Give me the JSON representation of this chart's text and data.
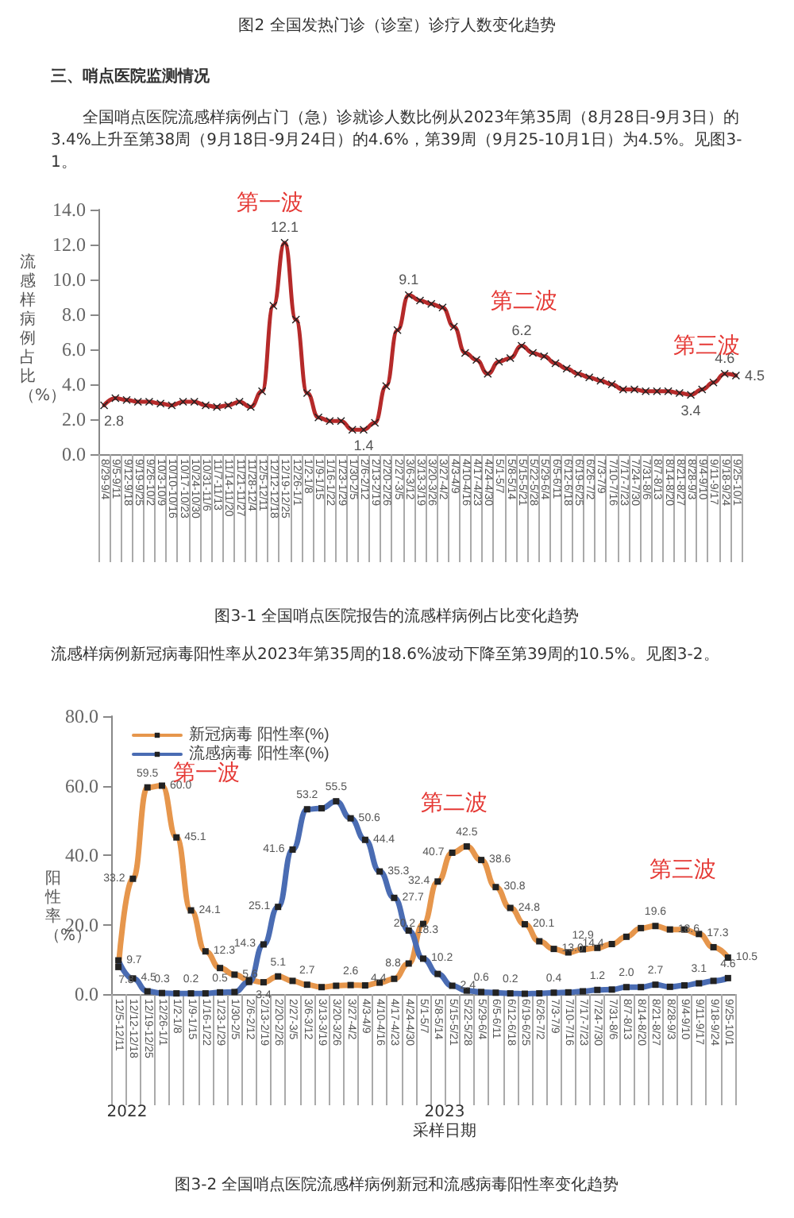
{
  "chart_data": [
    {
      "type": "line",
      "title": "图3-1 全国哨点医院报告的流感样病例占比变化趋势",
      "ylabel": "流感样病例占比（%）",
      "annotations": [
        "图2 全国发热门诊（诊室）诊疗人数变化趋势",
        "三、哨点医院监测情况",
        "全国哨点医院流感样病例占门（急）诊就诊人数比例从2023年第35周（8月28日-9月3日）的3.4%上升至第38周（9月18日-9月24日）的4.6%，第39周（9月25-10月1日）为4.5%。见图3-1。",
        "第一波",
        "第二波",
        "第三波"
      ],
      "categories": [
        "8/29-9/4",
        "9/5-9/11",
        "9/12-9/18",
        "9/19-9/25",
        "9/26-10/2",
        "10/3-10/9",
        "10/10-10/16",
        "10/17-10/23",
        "10/24-10/30",
        "10/31-11/6",
        "11/7-11/13",
        "11/14-11/20",
        "11/21-11/27",
        "11/28-12/4",
        "12/5-12/11",
        "12/12-12/18",
        "12/19-12/25",
        "12/26-1/1",
        "1/2-1/8",
        "1/9-1/15",
        "1/16-1/22",
        "1/23-1/29",
        "1/30-2/5",
        "2/6-2/12",
        "2/13-2/19",
        "2/20-2/26",
        "2/27-3/5",
        "3/6-3/12",
        "3/13-3/19",
        "3/20-3/26",
        "3/27-4/2",
        "4/3-4/9",
        "4/10-4/16",
        "4/17-4/23",
        "4/24-4/30",
        "5/1-5/7",
        "5/8-5/14",
        "5/15-5/21",
        "5/22-5/28",
        "5/29-6/4",
        "6/5-6/11",
        "6/12-6/18",
        "6/19-6/25",
        "6/26-7/2",
        "7/3-7/9",
        "7/10-7/16",
        "7/17-7/23",
        "7/24-7/30",
        "7/31-8/6",
        "8/7-8/13",
        "8/14-8/20",
        "8/21-8/27",
        "8/28-9/3",
        "9/4-9/10",
        "9/11-9/17",
        "9/18-9/24",
        "9/25-10/1"
      ],
      "values": [
        2.8,
        3.2,
        3.1,
        3.0,
        3.0,
        2.9,
        2.8,
        3.0,
        3.0,
        2.8,
        2.7,
        2.8,
        3.0,
        2.7,
        3.6,
        8.5,
        12.1,
        7.7,
        3.5,
        2.1,
        1.9,
        1.9,
        1.4,
        1.4,
        1.8,
        3.9,
        7.1,
        9.1,
        8.8,
        8.6,
        8.4,
        7.3,
        5.8,
        5.4,
        4.6,
        5.3,
        5.5,
        6.2,
        5.8,
        5.6,
        5.2,
        4.9,
        4.6,
        4.4,
        4.2,
        4.0,
        3.7,
        3.7,
        3.6,
        3.6,
        3.6,
        3.5,
        3.4,
        3.7,
        4.1,
        4.6,
        4.5
      ],
      "value_labels": [
        "2.8",
        null,
        null,
        null,
        null,
        null,
        null,
        null,
        null,
        null,
        null,
        null,
        null,
        null,
        null,
        null,
        "12.1",
        null,
        null,
        null,
        null,
        null,
        null,
        "1.4",
        null,
        null,
        null,
        "9.1",
        null,
        null,
        null,
        null,
        null,
        null,
        null,
        null,
        null,
        "6.2",
        null,
        null,
        null,
        null,
        null,
        null,
        null,
        null,
        null,
        null,
        null,
        null,
        null,
        null,
        "3.4",
        null,
        null,
        "4.6",
        "4.5"
      ],
      "color": "#b52a2a",
      "marker": "cross",
      "line_style": "solid",
      "ylim": [
        0,
        14
      ],
      "yticks": [
        {
          "value": 0,
          "label": "0.0"
        },
        {
          "value": 2,
          "label": "2.0"
        },
        {
          "value": 4,
          "label": "4.0"
        },
        {
          "value": 6,
          "label": "6.0"
        },
        {
          "value": 8,
          "label": "8.0"
        },
        {
          "value": 10,
          "label": "10.0"
        },
        {
          "value": 12,
          "label": "12.0"
        },
        {
          "value": 14,
          "label": "14.0"
        }
      ]
    },
    {
      "type": "line",
      "title": "图3-2 全国哨点医院流感样病例新冠和流感病毒阳性率变化趋势",
      "xlabel": "采样日期",
      "ylabel": "阳性率（%）",
      "annotations": [
        "流感样病例新冠病毒阳性率从2023年第35周的18.6%波动下降至第39周的10.5%。见图3-2。",
        "第一波",
        "第二波",
        "第三波",
        "2022",
        "2023"
      ],
      "categories": [
        "12/5-12/11",
        "12/12-12/18",
        "12/19-12/25",
        "12/26-1/1",
        "1/2-1/8",
        "1/9-1/15",
        "1/16-1/22",
        "1/23-1/29",
        "1/30-2/5",
        "2/6-2/12",
        "2/13-2/19",
        "2/20-2/26",
        "2/27-3/5",
        "3/6-3/12",
        "3/13-3/19",
        "3/20-3/26",
        "3/27-4/2",
        "4/3-4/9",
        "4/10-4/16",
        "4/17-4/23",
        "4/24-4/30",
        "5/1-5/7",
        "5/8-5/14",
        "5/15-5/21",
        "5/22-5/28",
        "5/29-6/4",
        "6/5-6/11",
        "6/12-6/18",
        "6/19-6/25",
        "6/26-7/2",
        "7/3-7/9",
        "7/10-7/16",
        "7/17-7/23",
        "7/24-7/30",
        "7/31-8/6",
        "8/7-8/13",
        "8/14-8/20",
        "8/21-8/27",
        "8/28-9/3",
        "9/4-9/10",
        "9/11-9/17",
        "9/18-9/24",
        "9/25-10/1"
      ],
      "series": [
        {
          "name": "新冠病毒 阳性率(%)",
          "color": "#e6964c",
          "values": [
            7.8,
            33.2,
            59.5,
            60.0,
            45.1,
            24.1,
            12.3,
            7.5,
            5.6,
            4.0,
            3.4,
            5.1,
            3.8,
            2.7,
            2.0,
            2.4,
            2.6,
            2.5,
            3.3,
            4.4,
            8.8,
            20.2,
            32.4,
            40.7,
            42.5,
            38.6,
            30.8,
            24.8,
            20.1,
            15.2,
            13.0,
            12.0,
            12.9,
            13.3,
            14.4,
            16.5,
            19.0,
            19.6,
            18.6,
            18.6,
            17.3,
            13.5,
            10.5
          ],
          "value_labels": [
            "7.8",
            "33.2",
            "59.5",
            "60.0",
            "45.1",
            "24.1",
            "12.3",
            null,
            "5.6",
            null,
            "3.4",
            "5.1",
            null,
            "2.7",
            null,
            null,
            "2.6",
            null,
            null,
            "4.4",
            "8.8",
            "20.2",
            "32.4",
            "40.7",
            "42.5",
            "38.6",
            "30.8",
            "24.8",
            "20.1",
            null,
            "13.0",
            null,
            "12.9",
            null,
            "14.4",
            null,
            null,
            "19.6",
            "18.6",
            null,
            "17.3",
            null,
            "10.5"
          ]
        },
        {
          "name": "流感病毒 阳性率(%)",
          "color": "#4a6cb3",
          "values": [
            9.7,
            4.5,
            0.8,
            0.3,
            0.2,
            0.2,
            0.2,
            0.5,
            0.6,
            3.5,
            14.3,
            25.1,
            41.6,
            53.2,
            53.5,
            55.5,
            50.6,
            44.4,
            35.3,
            27.7,
            18.3,
            10.2,
            5.8,
            2.4,
            1.0,
            0.6,
            0.4,
            0.2,
            0.1,
            0.2,
            0.4,
            0.5,
            0.8,
            1.2,
            1.3,
            2.0,
            2.0,
            2.7,
            2.1,
            2.5,
            3.1,
            3.8,
            4.6
          ],
          "value_labels": [
            "9.7",
            "4.5",
            null,
            "0.3",
            null,
            "0.2",
            null,
            "0.5",
            null,
            null,
            "14.3",
            "25.1",
            "41.6",
            "53.2",
            null,
            "55.5",
            "50.6",
            "44.4",
            "35.3",
            "27.7",
            "18.3",
            "10.2",
            null,
            "2.4",
            null,
            "0.6",
            null,
            "0.2",
            null,
            null,
            "0.4",
            null,
            null,
            "1.2",
            null,
            "2.0",
            null,
            "2.7",
            null,
            null,
            "3.1",
            null,
            "4.6"
          ]
        }
      ],
      "marker": "square",
      "line_style": "solid",
      "legend": "top left",
      "ylim": [
        0,
        80
      ],
      "yticks": [
        {
          "value": 0,
          "label": "0.0"
        },
        {
          "value": 20,
          "label": "20.0"
        },
        {
          "value": 40,
          "label": "40.0"
        },
        {
          "value": 60,
          "label": "60.0"
        },
        {
          "value": 80,
          "label": "80.0"
        }
      ]
    }
  ]
}
